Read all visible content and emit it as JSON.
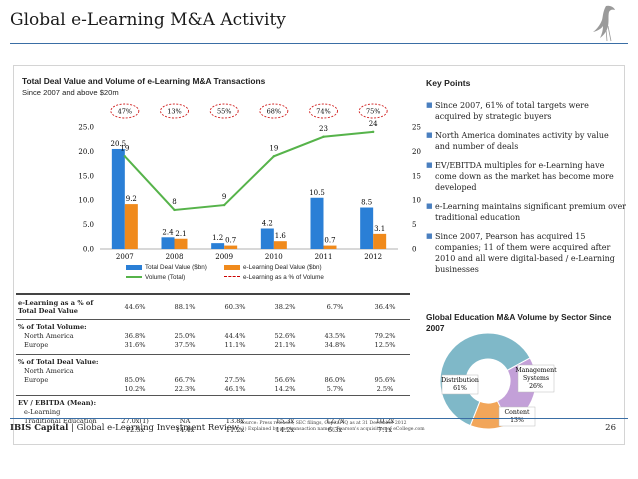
{
  "title": "Global e-Learning M&A Activity",
  "chart_data": {
    "type": "bar",
    "title": "Total Deal Value and Volume of e-Learning M&A Transactions",
    "subtitle": "Since 2007 and above $20m",
    "categories": [
      "2007",
      "2008",
      "2009",
      "2010",
      "2011",
      "2012"
    ],
    "series": [
      {
        "name": "Total Deal Value ($bn)",
        "kind": "bar",
        "axis": "left",
        "color": "#2a7fd6",
        "values": [
          20.5,
          2.4,
          1.2,
          4.2,
          10.5,
          8.5
        ]
      },
      {
        "name": "e-Learning Deal Value ($bn)",
        "kind": "bar",
        "axis": "left",
        "color": "#f08a1c",
        "values": [
          9.2,
          2.1,
          0.7,
          1.6,
          0.7,
          3.1
        ]
      },
      {
        "name": "Volume (Total)",
        "kind": "line",
        "axis": "right",
        "color": "#56b34a",
        "values": [
          19,
          8,
          9,
          19,
          23,
          24
        ]
      }
    ],
    "pct_labels": [
      "47%",
      "13%",
      "55%",
      "68%",
      "74%",
      "75%"
    ],
    "pct_series_name": "e-Learning as a % of Volume",
    "left_axis": {
      "ylim": [
        0,
        25
      ],
      "ticks": [
        "0.0",
        "5.0",
        "10.0",
        "15.0",
        "20.0",
        "25.0"
      ]
    },
    "right_axis": {
      "ylim": [
        0,
        25
      ],
      "ticks": [
        "0",
        "5",
        "10",
        "15",
        "20",
        "25"
      ]
    },
    "grid": false
  },
  "table": {
    "years": [
      "2007",
      "2008",
      "2009",
      "2010",
      "2011",
      "2012"
    ],
    "elearning_pct": {
      "label": "e-Learning as a % of Total Deal Value",
      "values": [
        "44.6%",
        "88.1%",
        "60.3%",
        "38.2%",
        "6.7%",
        "36.4%"
      ]
    },
    "volume": {
      "label": "% of Total Volume:",
      "rows": [
        {
          "label": "North America",
          "values": [
            "36.8%",
            "25.0%",
            "44.4%",
            "52.6%",
            "43.5%",
            "79.2%"
          ]
        },
        {
          "label": "Europe",
          "values": [
            "31.6%",
            "37.5%",
            "11.1%",
            "21.1%",
            "34.8%",
            "12.5%"
          ]
        }
      ]
    },
    "deal_value": {
      "label": "% of Total Deal Value:",
      "rows": [
        {
          "label": "North America",
          "values": [
            "85.0%",
            "66.7%",
            "27.5%",
            "56.6%",
            "86.0%",
            "95.6%"
          ]
        },
        {
          "label": "Europe",
          "values": [
            "10.2%",
            "22.3%",
            "46.1%",
            "14.2%",
            "5.7%",
            "2.5%"
          ]
        }
      ]
    },
    "ev_ebitda": {
      "label": "EV / EBITDA (Mean):",
      "rows": [
        {
          "label": "e-Learning",
          "values": [
            "27.0x(1)",
            "NA",
            "13.8x",
            "15.3x",
            "12.7x",
            "10.2x"
          ]
        },
        {
          "label": "Traditional Education",
          "values": [
            "12.5x",
            "14.4x",
            "11.2x",
            "14.2x",
            "6.3x",
            "7.1x"
          ]
        }
      ]
    }
  },
  "key_points": {
    "title": "Key Points",
    "items": [
      "Since 2007, 61% of total targets were acquired by strategic buyers",
      "North America dominates activity by value and number of deals",
      "EV/EBITDA multiples for e-Learning have come down as the market has become more developed",
      "e-Learning maintains significant premium over traditional education",
      "Since 2007, Pearson has acquired 15 companies; 11 of them were acquired after 2010 and all were digital-based / e-Learning businesses"
    ]
  },
  "pie": {
    "title": "Global Education M&A Volume by Sector Since 2007",
    "slices": [
      {
        "label": "Distribution",
        "value": 61,
        "value_label": "61%",
        "color": "#7fb8c8"
      },
      {
        "label": "Content",
        "value": 13,
        "value_label": "13%",
        "color": "#f2a65a"
      },
      {
        "label": "Management Systems",
        "value": 26,
        "value_label": "26%",
        "color": "#c3a0d8"
      }
    ]
  },
  "footer": {
    "brand": "IBIS Capital",
    "report": "Global e-Learning Investment Review",
    "source_line1": "Source: Press releases, SEC filings, Capital IQ as at 31 December 2012",
    "source_line2": "(1)     Explained by one transaction namely, Pearson's acquisition of eCollege.com",
    "page": "26"
  }
}
